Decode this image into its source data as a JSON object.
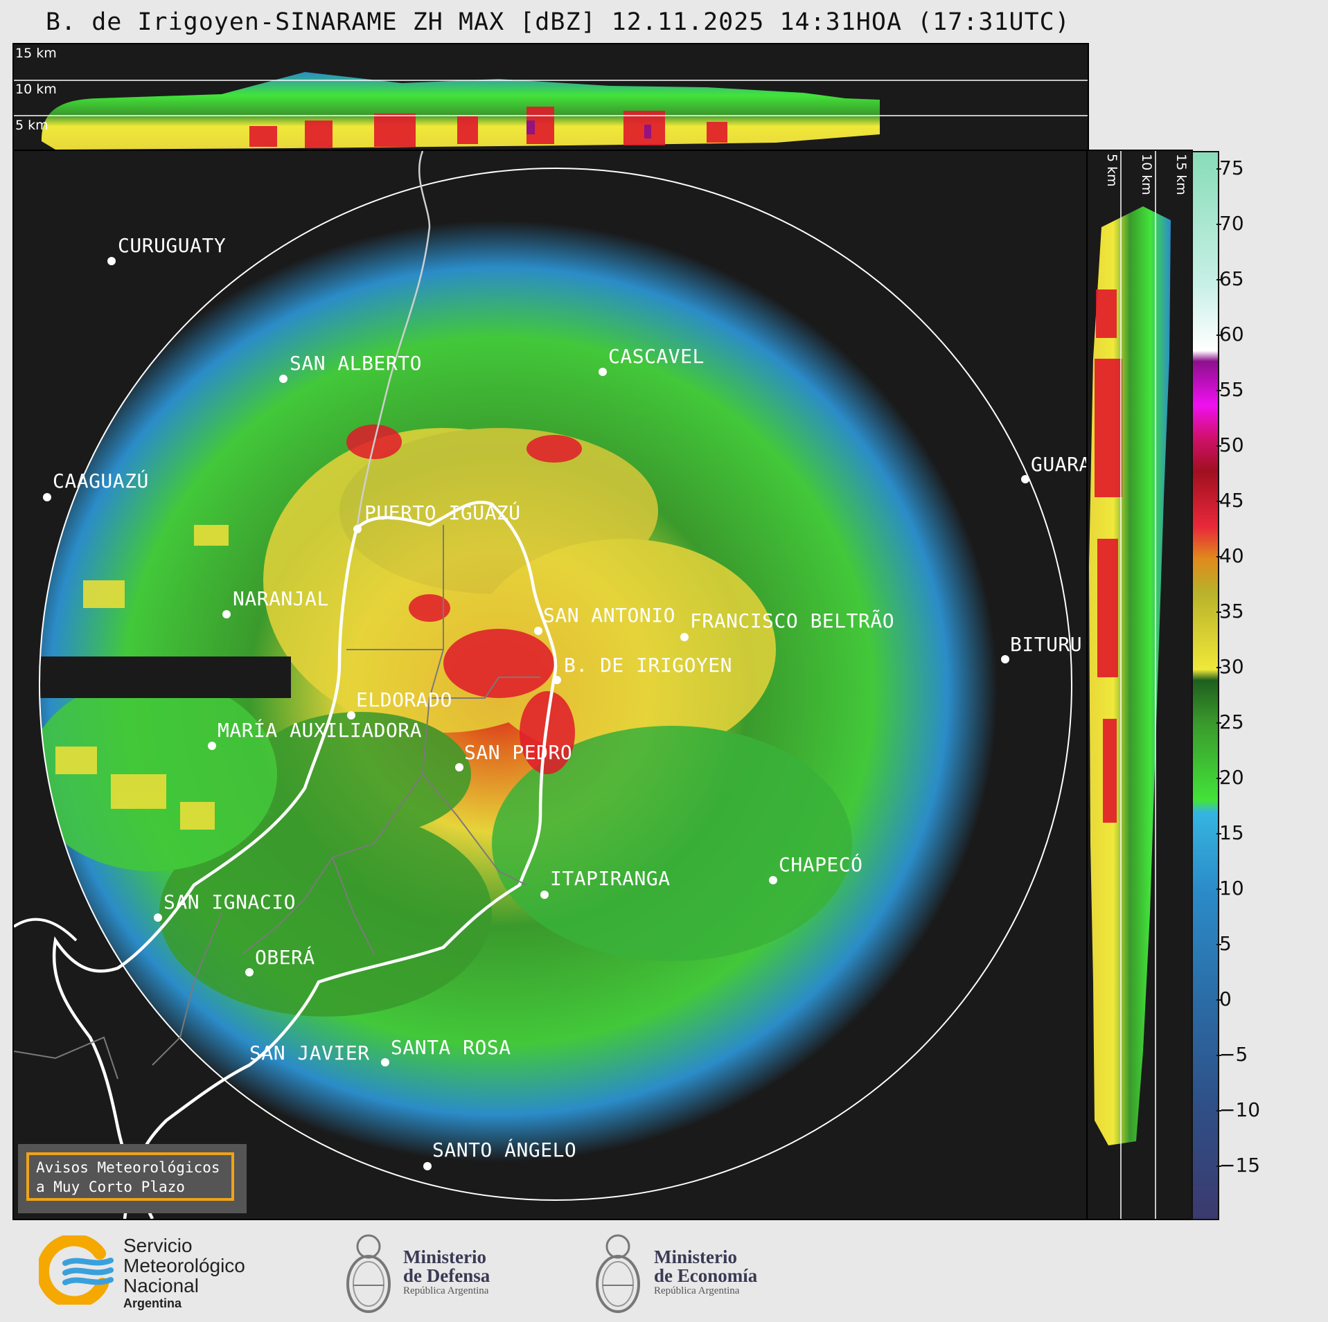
{
  "title": "B. de Irigoyen-SINARAME ZH MAX [dBZ] 12.11.2025 14:31HOA (17:31UTC)",
  "ns_altitudes": [
    "15 km",
    "10 km",
    "5 km"
  ],
  "ew_altitudes": [
    "5 km",
    "10 km",
    "15 km"
  ],
  "cities": [
    {
      "id": "curuguaty",
      "name": "CURUGUATY"
    },
    {
      "id": "san-alberto",
      "name": "SAN ALBERTO"
    },
    {
      "id": "cascavel",
      "name": "CASCAVEL"
    },
    {
      "id": "caaguazu",
      "name": "CAAGUAZÚ"
    },
    {
      "id": "guara",
      "name": "GUARA"
    },
    {
      "id": "puerto-iguazu",
      "name": "PUERTO IGUAZÚ"
    },
    {
      "id": "naranjal",
      "name": "NARANJAL"
    },
    {
      "id": "san-antonio",
      "name": "SAN ANTONIO"
    },
    {
      "id": "francisco-beltrao",
      "name": "FRANCISCO BELTRÃO"
    },
    {
      "id": "bituru",
      "name": "BITURU"
    },
    {
      "id": "b-de-irigoyen",
      "name": "B. DE IRIGOYEN"
    },
    {
      "id": "eldorado",
      "name": "ELDORADO"
    },
    {
      "id": "maria-auxiliadora",
      "name": "MARÍA AUXILIADORA"
    },
    {
      "id": "san-pedro",
      "name": "SAN PEDRO"
    },
    {
      "id": "chapeco",
      "name": "CHAPECÓ"
    },
    {
      "id": "itapiranga",
      "name": "ITAPIRANGA"
    },
    {
      "id": "san-ignacio",
      "name": "SAN IGNACIO"
    },
    {
      "id": "obera",
      "name": "OBERÁ"
    },
    {
      "id": "san-javier",
      "name": "SAN JAVIER"
    },
    {
      "id": "santa-rosa",
      "name": "SANTA ROSA"
    },
    {
      "id": "santo-angelo",
      "name": "SANTO ÁNGELO"
    }
  ],
  "colorbar": {
    "unit": "dBZ",
    "ticks": [
      "75",
      "70",
      "65",
      "60",
      "55",
      "50",
      "45",
      "40",
      "35",
      "30",
      "25",
      "20",
      "15",
      "10",
      "5",
      "0",
      "−5",
      "−10",
      "−15"
    ],
    "stops": [
      {
        "value": -20,
        "color": "#3b3a6e"
      },
      {
        "value": -10,
        "color": "#2f4f86"
      },
      {
        "value": 0,
        "color": "#2b6ca6"
      },
      {
        "value": 10,
        "color": "#2b8cc8"
      },
      {
        "value": 17,
        "color": "#35b5e0"
      },
      {
        "value": 18,
        "color": "#43e33a"
      },
      {
        "value": 25,
        "color": "#3a9a2c"
      },
      {
        "value": 29,
        "color": "#1f5f1e"
      },
      {
        "value": 30,
        "color": "#f0e83a"
      },
      {
        "value": 37,
        "color": "#b8b12a"
      },
      {
        "value": 40,
        "color": "#e08a1c"
      },
      {
        "value": 43,
        "color": "#e8283a"
      },
      {
        "value": 48,
        "color": "#a01020"
      },
      {
        "value": 51,
        "color": "#d0106a"
      },
      {
        "value": 54,
        "color": "#f010f0"
      },
      {
        "value": 58,
        "color": "#8c108c"
      },
      {
        "value": 59,
        "color": "#ffffff"
      },
      {
        "value": 65,
        "color": "#c8f0e6"
      },
      {
        "value": 77,
        "color": "#88dcb8"
      }
    ]
  },
  "aviso": {
    "line1": "Avisos Meteorológicos",
    "line2": "a Muy Corto Plazo"
  },
  "footer": {
    "smn": {
      "line1": "Servicio",
      "line2": "Meteorológico",
      "line3": "Nacional",
      "line4": "Argentina"
    },
    "defensa": {
      "line1": "Ministerio",
      "line2": "de Defensa",
      "line3": "República Argentina"
    },
    "economia": {
      "line1": "Ministerio",
      "line2": "de Economía",
      "line3": "República Argentina"
    }
  }
}
